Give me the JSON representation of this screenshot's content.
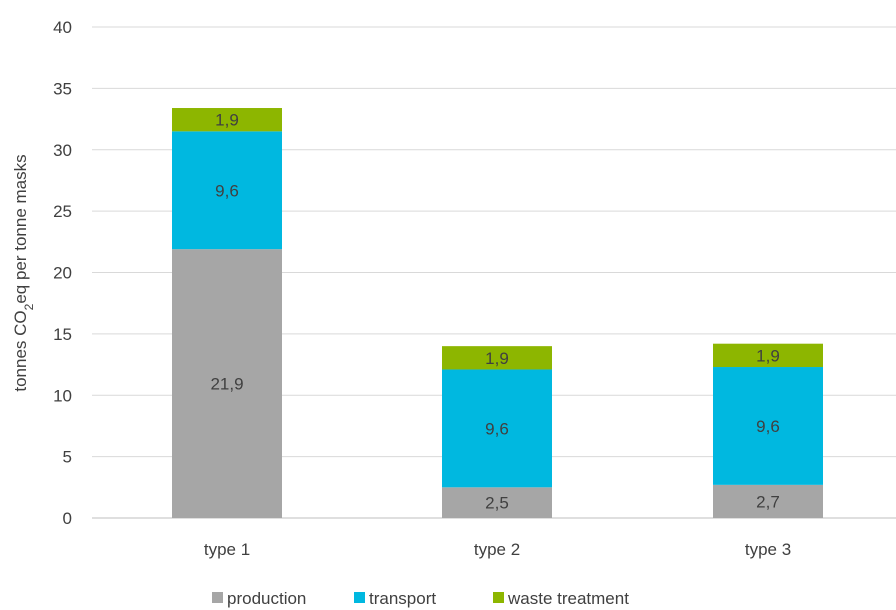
{
  "chart_data": {
    "type": "bar",
    "stacked": true,
    "categories": [
      "type 1",
      "type 2",
      "type 3"
    ],
    "series": [
      {
        "name": "production",
        "values": [
          21.9,
          2.5,
          2.7
        ],
        "labels": [
          "21,9",
          "2,5",
          "2,7"
        ],
        "color": "#a6a6a6"
      },
      {
        "name": "transport",
        "values": [
          9.6,
          9.6,
          9.6
        ],
        "labels": [
          "9,6",
          "9,6",
          "9,6"
        ],
        "color": "#00b8e0"
      },
      {
        "name": "waste treatment",
        "values": [
          1.9,
          1.9,
          1.9
        ],
        "labels": [
          "1,9",
          "1,9",
          "1,9"
        ],
        "color": "#8db600"
      }
    ],
    "ylabel_main": "tonnes CO",
    "ylabel_sub": "2",
    "ylabel_rest": "eq per tonne masks",
    "xlabel": "",
    "ylim": [
      0,
      40
    ],
    "yticks": [
      0,
      5,
      10,
      15,
      20,
      25,
      30,
      35,
      40
    ],
    "grid": true,
    "legend_position": "bottom"
  }
}
